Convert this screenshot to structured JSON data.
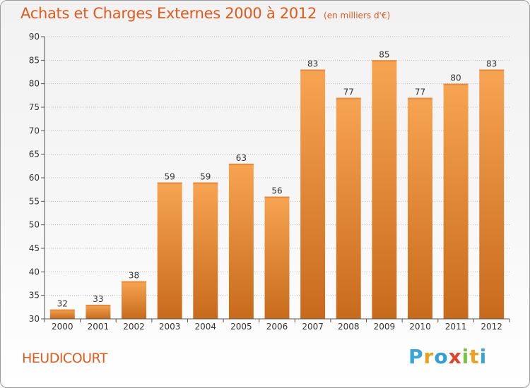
{
  "header": {
    "title": "Achats et Charges Externes 2000 à 2012",
    "unit": "(en milliers d'€)"
  },
  "footer": {
    "commune": "HEUDICOURT",
    "logo_text": "Proxiti"
  },
  "colors": {
    "accent": "#e05a1b",
    "bar_top": "#f7a452",
    "bar_bottom": "#c86a1c"
  },
  "chart_data": {
    "type": "bar",
    "title": "Achats et Charges Externes 2000 à 2012",
    "subtitle": "(en milliers d'€)",
    "xlabel": "",
    "ylabel": "",
    "categories": [
      "2000",
      "2001",
      "2002",
      "2003",
      "2004",
      "2005",
      "2006",
      "2007",
      "2008",
      "2009",
      "2010",
      "2011",
      "2012"
    ],
    "values": [
      32,
      33,
      38,
      59,
      59,
      63,
      56,
      83,
      77,
      85,
      77,
      80,
      83
    ],
    "ylim": [
      30,
      90
    ],
    "yticks": [
      30,
      35,
      40,
      45,
      50,
      55,
      60,
      65,
      70,
      75,
      80,
      85,
      90
    ],
    "grid": true,
    "data_labels": true
  }
}
